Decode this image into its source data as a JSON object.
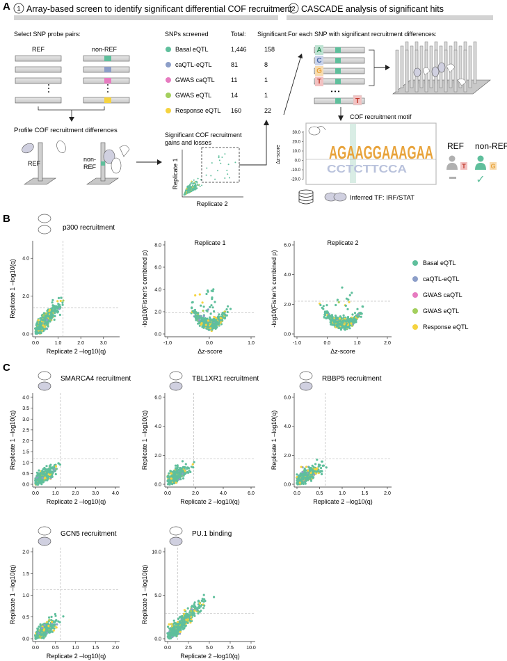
{
  "panelA": {
    "letter": "A",
    "step1": {
      "num": "1",
      "title": "Array-based screen to identify significant differential COF recruitment"
    },
    "step2": {
      "num": "2",
      "title": "CASCADE analysis of significant hits"
    },
    "select_label": "Select SNP probe pairs:",
    "ref": "REF",
    "nonref": "non-REF",
    "profile_label": "Profile COF recruitment differences",
    "ref2": "REF",
    "nonref2a": "non-",
    "nonref2b": "REF",
    "table": {
      "headers": [
        "SNPs screened",
        "Total:",
        "Significant:"
      ],
      "rows": [
        {
          "name": "Basal eQTL",
          "total": "1,446",
          "sig": "158",
          "color": "#5fbf9c"
        },
        {
          "name": "caQTL-eQTL",
          "total": "81",
          "sig": "8",
          "color": "#8c9ec8"
        },
        {
          "name": "GWAS caQTL",
          "total": "11",
          "sig": "1",
          "color": "#e77bc0"
        },
        {
          "name": "GWAS eQTL",
          "total": "14",
          "sig": "1",
          "color": "#a3cf5d"
        },
        {
          "name": "Response eQTL",
          "total": "160",
          "sig": "22",
          "color": "#f5d33f"
        }
      ]
    },
    "sig_label1": "Significant COF recruitment",
    "sig_label2": "gains and losses",
    "rep1": "Replicate 1",
    "rep2": "Replicate 2",
    "each_snp": "For each SNP with significant recruitment differences:",
    "bases": [
      "A",
      "C",
      "G",
      "T"
    ],
    "last_base": "T",
    "dots": "• • •",
    "motif_label": "COF recruitment motif",
    "dz": "Δz-score",
    "dz_ticks": [
      "30.0",
      "20.0",
      "10.0",
      "0.0",
      "-10.0",
      "-20.0"
    ],
    "logo_top": "AGAAGGAAAGAA",
    "logo_bottom": "CCTCTTCCA",
    "ref3": "REF",
    "nonref3": "non-REF",
    "allele_ref": "T",
    "allele_nonref": "G",
    "checkmark": "✓",
    "inferred": "Inferred TF: IRF/STAT"
  },
  "panelB": {
    "letter": "B",
    "title": "p300 recruitment",
    "plot1": {
      "xlabel": "Replicate 2 –log10(q)",
      "ylabel": "Replicate 1 –log10(q)",
      "xticks": [
        "0.0",
        "1.0",
        "2.0",
        "3.0"
      ],
      "yticks": [
        "0.0",
        "2.0",
        "4.0"
      ]
    },
    "plot2": {
      "title": "Replicate 1",
      "xlabel": "Δz-score",
      "ylabel": "-log10(Fisher's combined p)",
      "xticks": [
        "-1.0",
        "0.0",
        "1.0"
      ],
      "yticks": [
        "0.0",
        "2.0",
        "4.0",
        "6.0",
        "8.0"
      ]
    },
    "plot3": {
      "title": "Replicate 2",
      "xlabel": "Δz-score",
      "ylabel": "-log10(Fisher's combined p)",
      "xticks": [
        "-1.0",
        "0.0",
        "1.0",
        "2.0"
      ],
      "yticks": [
        "0.0",
        "2.0",
        "4.0",
        "6.0"
      ]
    },
    "legend": [
      {
        "label": "Basal eQTL",
        "color": "#5fbf9c"
      },
      {
        "label": "caQTL-eQTL",
        "color": "#8c9ec8"
      },
      {
        "label": "GWAS caQTL",
        "color": "#e77bc0"
      },
      {
        "label": "GWAS eQTL",
        "color": "#a3cf5d"
      },
      {
        "label": "Response eQTL",
        "color": "#f5d33f"
      }
    ]
  },
  "panelC": {
    "letter": "C",
    "xlabel": "Replicate 2 –log10(q)",
    "ylabel": "Replicate 1 –log10(q)",
    "plots": [
      {
        "title": "SMARCA4 recruitment",
        "xticks": [
          "0.0",
          "1.0",
          "2.0",
          "3.0",
          "4.0"
        ],
        "yticks": [
          "0.0",
          "0.5",
          "1.0",
          "1.5",
          "2.0",
          "2.5",
          "3.0",
          "3.5",
          "4.0"
        ]
      },
      {
        "title": "TBL1XR1 recruitment",
        "xticks": [
          "0.0",
          "2.0",
          "4.0",
          "6.0"
        ],
        "yticks": [
          "0.0",
          "2.0",
          "4.0",
          "6.0"
        ]
      },
      {
        "title": "RBBP5 recruitment",
        "xticks": [
          "0.0",
          "0.5",
          "1.0",
          "1.5",
          "2.0"
        ],
        "yticks": [
          "0.0",
          "2.0",
          "4.0",
          "6.0"
        ]
      },
      {
        "title": "GCN5 recruitment",
        "xticks": [
          "0.0",
          "0.5",
          "1.0",
          "1.5",
          "2.0"
        ],
        "yticks": [
          "0.0",
          "0.5",
          "1.0",
          "1.5",
          "2.0"
        ]
      },
      {
        "title": "PU.1 binding",
        "xticks": [
          "0.0",
          "2.5",
          "5.0",
          "7.5",
          "10.0"
        ],
        "yticks": [
          "0.0",
          "5.0",
          "10.0"
        ]
      }
    ]
  }
}
